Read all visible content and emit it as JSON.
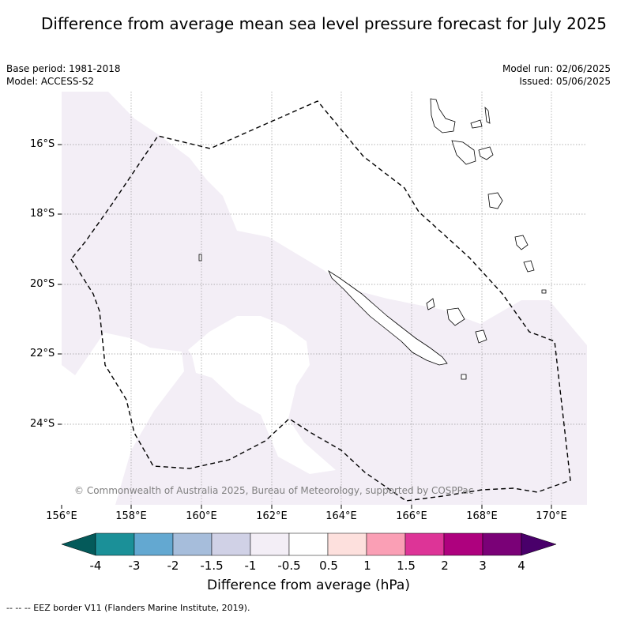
{
  "title": "Difference from average mean sea level pressure forecast for July 2025",
  "meta": {
    "base_period": "Base period: 1981-2018",
    "model": "Model: ACCESS-S2",
    "model_run": "Model run: 02/06/2025",
    "issued": "Issued: 05/06/2025"
  },
  "map": {
    "lat_ticks": [
      "16°S",
      "18°S",
      "20°S",
      "22°S",
      "24°S"
    ],
    "lon_ticks": [
      "156°E",
      "158°E",
      "160°E",
      "162°E",
      "164°E",
      "166°E",
      "168°E",
      "170°E"
    ],
    "copyright": "© Commonwealth of Australia 2025, Bureau of Meteorology, supported by COSPPac",
    "land_color": "#ffffff",
    "anomaly_fill_color": "#f3eef6",
    "eez_style": "dashed black line"
  },
  "colorbar": {
    "labels": [
      "-4",
      "-3",
      "-2",
      "-1.5",
      "-1",
      "-0.5",
      "0.5",
      "1",
      "1.5",
      "2",
      "3",
      "4"
    ],
    "colors": [
      "#045a5a",
      "#1b9098",
      "#63a8d1",
      "#a6bddb",
      "#d0d1e6",
      "#f3eef6",
      "#ffffff",
      "#fde0dd",
      "#fa9fb5",
      "#dd3497",
      "#ae017e",
      "#7a0177",
      "#49006a"
    ],
    "title": "Difference from average (hPa)"
  },
  "footnote": "-- -- -- EEZ border V11 (Flanders Marine Institute, 2019)."
}
